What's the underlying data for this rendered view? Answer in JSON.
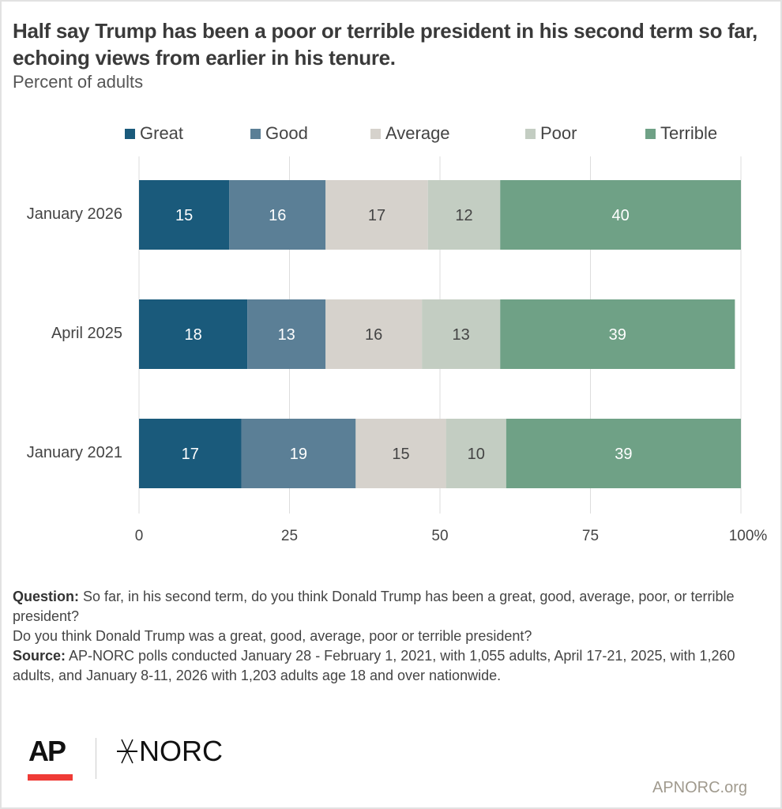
{
  "header": {
    "title": "Half say Trump has been a poor or terrible president in his second term so far, echoing views from earlier in his tenure.",
    "subtitle": "Percent of adults"
  },
  "chart_data": {
    "type": "bar",
    "orientation": "horizontal",
    "stacked": true,
    "title": "Half say Trump has been a poor or terrible president in his second term so far, echoing views from earlier in his tenure.",
    "subtitle": "Percent of adults",
    "categories": [
      "January 2026",
      "April 2025",
      "January 2021"
    ],
    "series": [
      {
        "name": "Great",
        "color": "#1a5a7b",
        "label_color": "#ffffff",
        "values": [
          15,
          18,
          17
        ]
      },
      {
        "name": "Good",
        "color": "#5b7f96",
        "label_color": "#ffffff",
        "values": [
          16,
          13,
          19
        ]
      },
      {
        "name": "Average",
        "color": "#d6d2cc",
        "label_color": "#444444",
        "values": [
          17,
          16,
          15
        ]
      },
      {
        "name": "Poor",
        "color": "#c3cdc2",
        "label_color": "#444444",
        "values": [
          12,
          13,
          10
        ]
      },
      {
        "name": "Terrible",
        "color": "#6fa186",
        "label_color": "#ffffff",
        "values": [
          40,
          39,
          39
        ]
      }
    ],
    "xlim": [
      0,
      100
    ],
    "xticks": [
      0,
      25,
      50,
      75,
      100
    ],
    "xtick_labels": [
      "0",
      "25",
      "50",
      "75",
      "100%"
    ],
    "xlabel": "",
    "ylabel": "",
    "grid": true,
    "legend_position": "top"
  },
  "notes": {
    "question_label": "Question:",
    "question_text": " So far, in his second term, do you think Donald Trump has been a great, good, average, poor, or terrible president?",
    "question_text2": "Do you think Donald Trump was a great, good, average, poor or terrible president?",
    "source_label": "Source:",
    "source_text": " AP-NORC polls conducted January 28 - February 1, 2021, with 1,055 adults, April 17-21, 2025, with 1,260 adults, and January 8-11, 2026 with 1,203 adults age 18 and over nationwide."
  },
  "footer": {
    "ap_logo": "AP",
    "norc_logo": "NORC",
    "url": "APNORC.org"
  }
}
